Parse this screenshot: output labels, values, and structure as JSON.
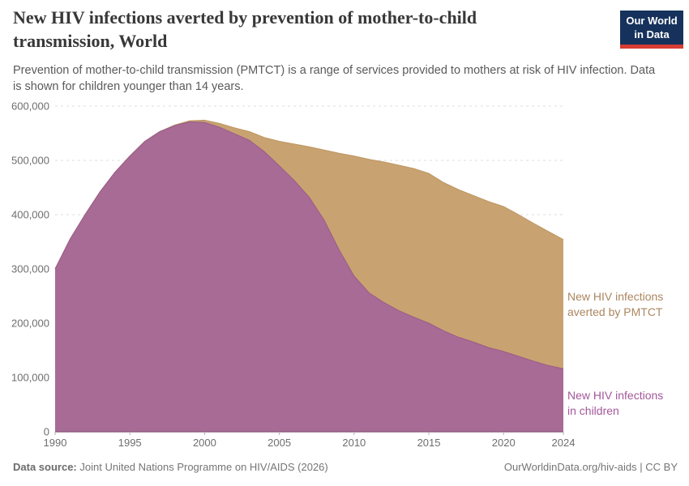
{
  "header": {
    "title": "New HIV infections averted by prevention of mother-to-child transmission, World",
    "subtitle": "Prevention of mother-to-child transmission (PMTCT) is a range of services provided to mothers at risk of HIV infection. Data is shown for children younger than 14 years.",
    "logo": {
      "line1": "Our World",
      "line2": "in Data",
      "bg": "#16325c",
      "accent": "#d73c32"
    }
  },
  "chart_data": {
    "type": "area",
    "stacked": true,
    "title": "New HIV infections averted by prevention of mother-to-child transmission, World",
    "xlabel": "",
    "ylabel": "",
    "grid": "dashed",
    "ylim": [
      0,
      600000
    ],
    "yticks": [
      0,
      100000,
      200000,
      300000,
      400000,
      500000,
      600000
    ],
    "xticks": [
      1990,
      1995,
      2000,
      2005,
      2010,
      2015,
      2020,
      2024
    ],
    "x": [
      1990,
      1991,
      1992,
      1993,
      1994,
      1995,
      1996,
      1997,
      1998,
      1999,
      2000,
      2001,
      2002,
      2003,
      2004,
      2005,
      2006,
      2007,
      2008,
      2009,
      2010,
      2011,
      2012,
      2013,
      2014,
      2015,
      2016,
      2017,
      2018,
      2019,
      2020,
      2021,
      2022,
      2023,
      2024
    ],
    "series": [
      {
        "name": "New HIV infections in children",
        "label_lines": [
          "New HIV infections",
          "in children"
        ],
        "color": "#a76b95",
        "edge": "#9c5c88",
        "label_color": "#a3579a",
        "values": [
          300000,
          355000,
          400000,
          442000,
          478000,
          508000,
          535000,
          553000,
          564000,
          571000,
          570000,
          561000,
          549000,
          537000,
          516000,
          490000,
          463000,
          432000,
          390000,
          335000,
          287000,
          256000,
          238000,
          223000,
          211000,
          200000,
          186000,
          174000,
          165000,
          155000,
          148000,
          139000,
          130000,
          122000,
          116000
        ]
      },
      {
        "name": "New HIV infections averted by PMTCT",
        "label_lines": [
          "New HIV infections",
          "averted by PMTCT"
        ],
        "color": "#c8a371",
        "edge": "#bd9560",
        "label_color": "#ab865f",
        "values": [
          0,
          0,
          0,
          0,
          0,
          0,
          0,
          0,
          1000,
          2000,
          4000,
          7000,
          11000,
          16000,
          26000,
          45000,
          67000,
          93000,
          129000,
          178000,
          221000,
          246000,
          259000,
          268000,
          274000,
          276000,
          273000,
          272000,
          270000,
          269000,
          267000,
          261000,
          254000,
          247000,
          238000
        ]
      }
    ]
  },
  "axes_style": {
    "grid_color": "#dcdcdc",
    "tick_color": "#adadad",
    "label_color": "#6e6e6e",
    "baseline_color": "#8e5e80"
  },
  "footer": {
    "source_label": "Data source:",
    "source_text": "Joint United Nations Programme on HIV/AIDS (2026)",
    "credit": "OurWorldinData.org/hiv-aids | CC BY"
  }
}
